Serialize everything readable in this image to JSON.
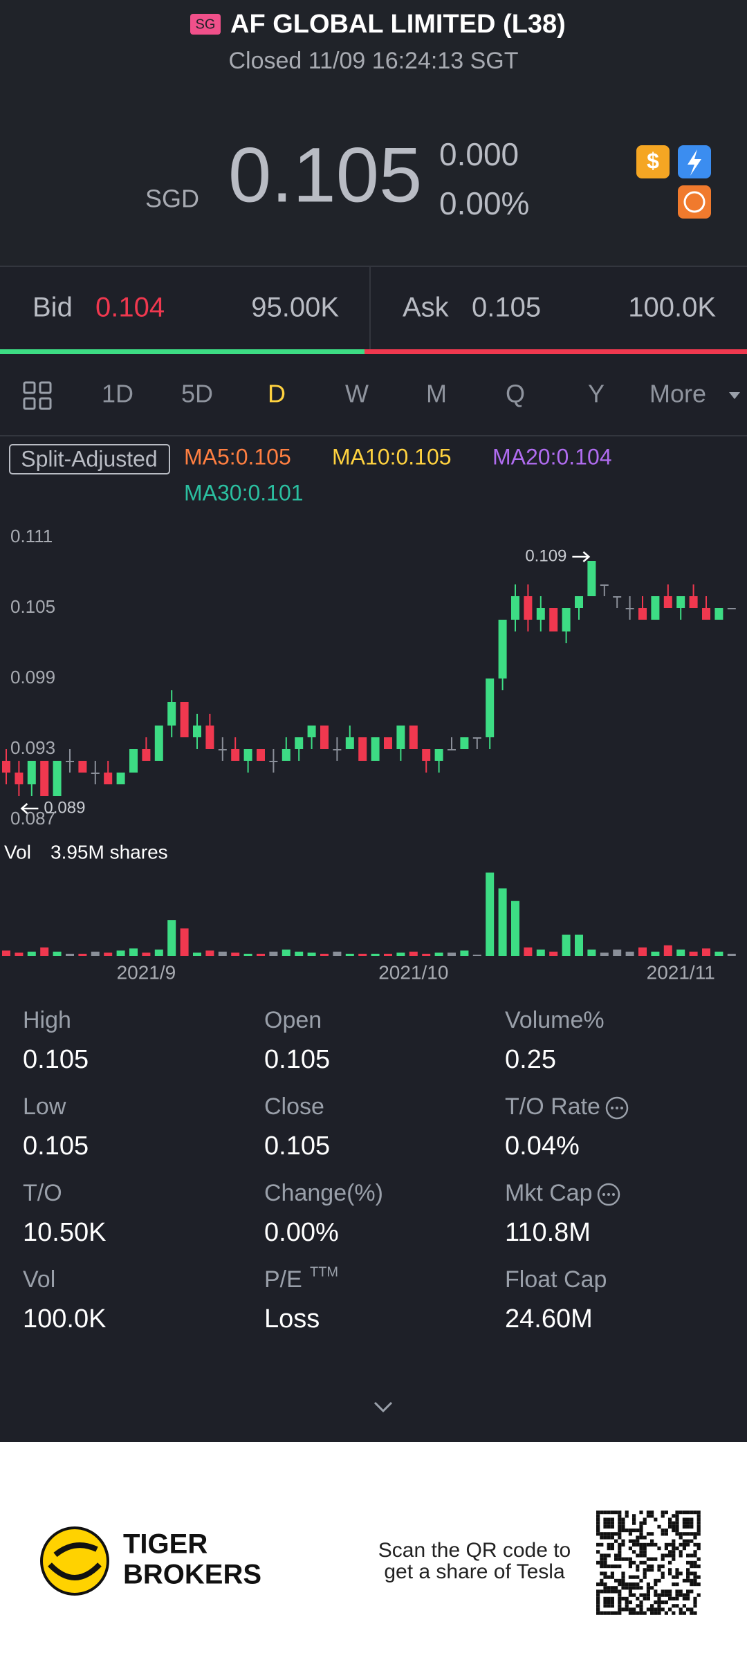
{
  "header": {
    "badge": "SG",
    "title": "AF GLOBAL LIMITED (L38)",
    "status": "Closed 11/09 16:24:13 SGT"
  },
  "quote": {
    "currency": "SGD",
    "price": "0.105",
    "change": "0.000",
    "change_pct": "0.00%"
  },
  "order_book": {
    "bid_label": "Bid",
    "bid": "0.104",
    "bid_size": "95.00K",
    "ask_label": "Ask",
    "ask": "0.105",
    "ask_size": "100.0K"
  },
  "tabs": [
    "1D",
    "5D",
    "D",
    "W",
    "M",
    "Q",
    "Y",
    "More"
  ],
  "active_tab": "D",
  "legend": {
    "adjust": "Split-Adjusted",
    "ma": [
      {
        "label": "MA5:0.105",
        "color": "#ff7f41"
      },
      {
        "label": "MA10:0.105",
        "color": "#ffd23f"
      },
      {
        "label": "MA20:0.104",
        "color": "#b06cf0"
      },
      {
        "label": "MA30:0.101",
        "color": "#2bbfa0"
      }
    ]
  },
  "chart_data": {
    "type": "candlestick",
    "up_color": "#3ddc84",
    "down_color": "#f0384f",
    "flat_color": "#8a8f99",
    "ylim": [
      0.086,
      0.112
    ],
    "yticks": [
      0.111,
      0.105,
      0.099,
      0.093,
      0.087
    ],
    "high_label": "0.109",
    "low_label": "0.089",
    "categories": [
      null,
      null,
      null,
      null,
      null,
      null,
      null,
      null,
      null,
      null,
      null,
      "2021/9",
      null,
      null,
      null,
      null,
      null,
      null,
      null,
      null,
      null,
      null,
      null,
      null,
      null,
      null,
      null,
      null,
      null,
      null,
      null,
      null,
      "2021/10",
      null,
      null,
      null,
      null,
      null,
      null,
      null,
      null,
      null,
      null,
      null,
      null,
      null,
      null,
      null,
      null,
      null,
      null,
      null,
      null,
      "2021/11",
      null,
      null,
      null,
      null
    ],
    "ohlc": [
      [
        0.092,
        0.093,
        0.09,
        0.091
      ],
      [
        0.091,
        0.092,
        0.089,
        0.09
      ],
      [
        0.09,
        0.092,
        0.089,
        0.092
      ],
      [
        0.092,
        0.092,
        0.089,
        0.089
      ],
      [
        0.089,
        0.092,
        0.089,
        0.092
      ],
      [
        0.092,
        0.093,
        0.091,
        0.092
      ],
      [
        0.092,
        0.092,
        0.091,
        0.091
      ],
      [
        0.091,
        0.092,
        0.09,
        0.091
      ],
      [
        0.091,
        0.092,
        0.09,
        0.09
      ],
      [
        0.09,
        0.091,
        0.09,
        0.091
      ],
      [
        0.091,
        0.093,
        0.091,
        0.093
      ],
      [
        0.093,
        0.094,
        0.092,
        0.092
      ],
      [
        0.092,
        0.095,
        0.092,
        0.095
      ],
      [
        0.095,
        0.098,
        0.094,
        0.097
      ],
      [
        0.097,
        0.097,
        0.094,
        0.094
      ],
      [
        0.094,
        0.096,
        0.093,
        0.095
      ],
      [
        0.095,
        0.096,
        0.093,
        0.093
      ],
      [
        0.093,
        0.094,
        0.092,
        0.093
      ],
      [
        0.093,
        0.094,
        0.092,
        0.092
      ],
      [
        0.092,
        0.093,
        0.091,
        0.093
      ],
      [
        0.093,
        0.093,
        0.092,
        0.092
      ],
      [
        0.092,
        0.093,
        0.091,
        0.092
      ],
      [
        0.092,
        0.094,
        0.092,
        0.093
      ],
      [
        0.093,
        0.094,
        0.092,
        0.094
      ],
      [
        0.094,
        0.095,
        0.093,
        0.095
      ],
      [
        0.095,
        0.095,
        0.093,
        0.093
      ],
      [
        0.093,
        0.094,
        0.092,
        0.093
      ],
      [
        0.093,
        0.095,
        0.093,
        0.094
      ],
      [
        0.094,
        0.094,
        0.092,
        0.092
      ],
      [
        0.092,
        0.094,
        0.092,
        0.094
      ],
      [
        0.094,
        0.094,
        0.093,
        0.093
      ],
      [
        0.093,
        0.095,
        0.092,
        0.095
      ],
      [
        0.095,
        0.095,
        0.093,
        0.093
      ],
      [
        0.093,
        0.093,
        0.091,
        0.092
      ],
      [
        0.092,
        0.093,
        0.091,
        0.093
      ],
      [
        0.093,
        0.094,
        0.093,
        0.093
      ],
      [
        0.093,
        0.094,
        0.093,
        0.094
      ],
      [
        0.094,
        0.094,
        0.093,
        0.094
      ],
      [
        0.094,
        0.099,
        0.093,
        0.099
      ],
      [
        0.099,
        0.104,
        0.098,
        0.104
      ],
      [
        0.104,
        0.107,
        0.103,
        0.106
      ],
      [
        0.106,
        0.107,
        0.103,
        0.104
      ],
      [
        0.104,
        0.106,
        0.103,
        0.105
      ],
      [
        0.105,
        0.105,
        0.103,
        0.103
      ],
      [
        0.103,
        0.105,
        0.102,
        0.105
      ],
      [
        0.105,
        0.106,
        0.104,
        0.106
      ],
      [
        0.106,
        0.109,
        0.106,
        0.109
      ],
      [
        0.107,
        0.107,
        0.106,
        0.107
      ],
      [
        0.106,
        0.106,
        0.105,
        0.106
      ],
      [
        0.105,
        0.106,
        0.104,
        0.105
      ],
      [
        0.105,
        0.106,
        0.104,
        0.104
      ],
      [
        0.104,
        0.106,
        0.104,
        0.106
      ],
      [
        0.106,
        0.107,
        0.105,
        0.105
      ],
      [
        0.105,
        0.106,
        0.104,
        0.106
      ],
      [
        0.106,
        0.107,
        0.105,
        0.105
      ],
      [
        0.105,
        0.106,
        0.104,
        0.104
      ],
      [
        0.104,
        0.105,
        0.104,
        0.105
      ],
      [
        0.105,
        0.105,
        0.105,
        0.105
      ]
    ],
    "volumes": [
      0.25,
      0.15,
      0.2,
      0.4,
      0.2,
      0.1,
      0.1,
      0.2,
      0.15,
      0.25,
      0.35,
      0.15,
      0.3,
      1.7,
      1.3,
      0.15,
      0.25,
      0.2,
      0.15,
      0.1,
      0.1,
      0.2,
      0.3,
      0.2,
      0.15,
      0.1,
      0.2,
      0.1,
      0.1,
      0.1,
      0.1,
      0.15,
      0.2,
      0.1,
      0.15,
      0.15,
      0.25,
      0.05,
      3.95,
      3.2,
      2.6,
      0.4,
      0.3,
      0.2,
      1.0,
      1.0,
      0.3,
      0.15,
      0.3,
      0.2,
      0.4,
      0.2,
      0.5,
      0.3,
      0.2,
      0.35,
      0.2,
      0.1
    ],
    "vlim": [
      0,
      4.1
    ]
  },
  "volume": {
    "label": "Vol",
    "value": "3.95M shares"
  },
  "stats": [
    {
      "label": "High",
      "value": "0.105"
    },
    {
      "label": "Open",
      "value": "0.105"
    },
    {
      "label": "Volume%",
      "value": "0.25"
    },
    {
      "label": "Low",
      "value": "0.105"
    },
    {
      "label": "Close",
      "value": "0.105"
    },
    {
      "label": "T/O Rate",
      "value": "0.04%"
    },
    {
      "label": "T/O",
      "value": "10.50K"
    },
    {
      "label": "Change(%)",
      "value": "0.00%"
    },
    {
      "label": "Mkt Cap",
      "value": "110.8M"
    },
    {
      "label": "Vol",
      "value": "100.0K"
    },
    {
      "label": "P/E",
      "sup": "TTM",
      "value": "Loss"
    },
    {
      "label": "Float Cap",
      "value": "24.60M"
    }
  ],
  "footer": {
    "brand": [
      "TIGER",
      "BROKERS"
    ],
    "cta": [
      "Scan the QR code to",
      "get a share of Tesla"
    ]
  }
}
